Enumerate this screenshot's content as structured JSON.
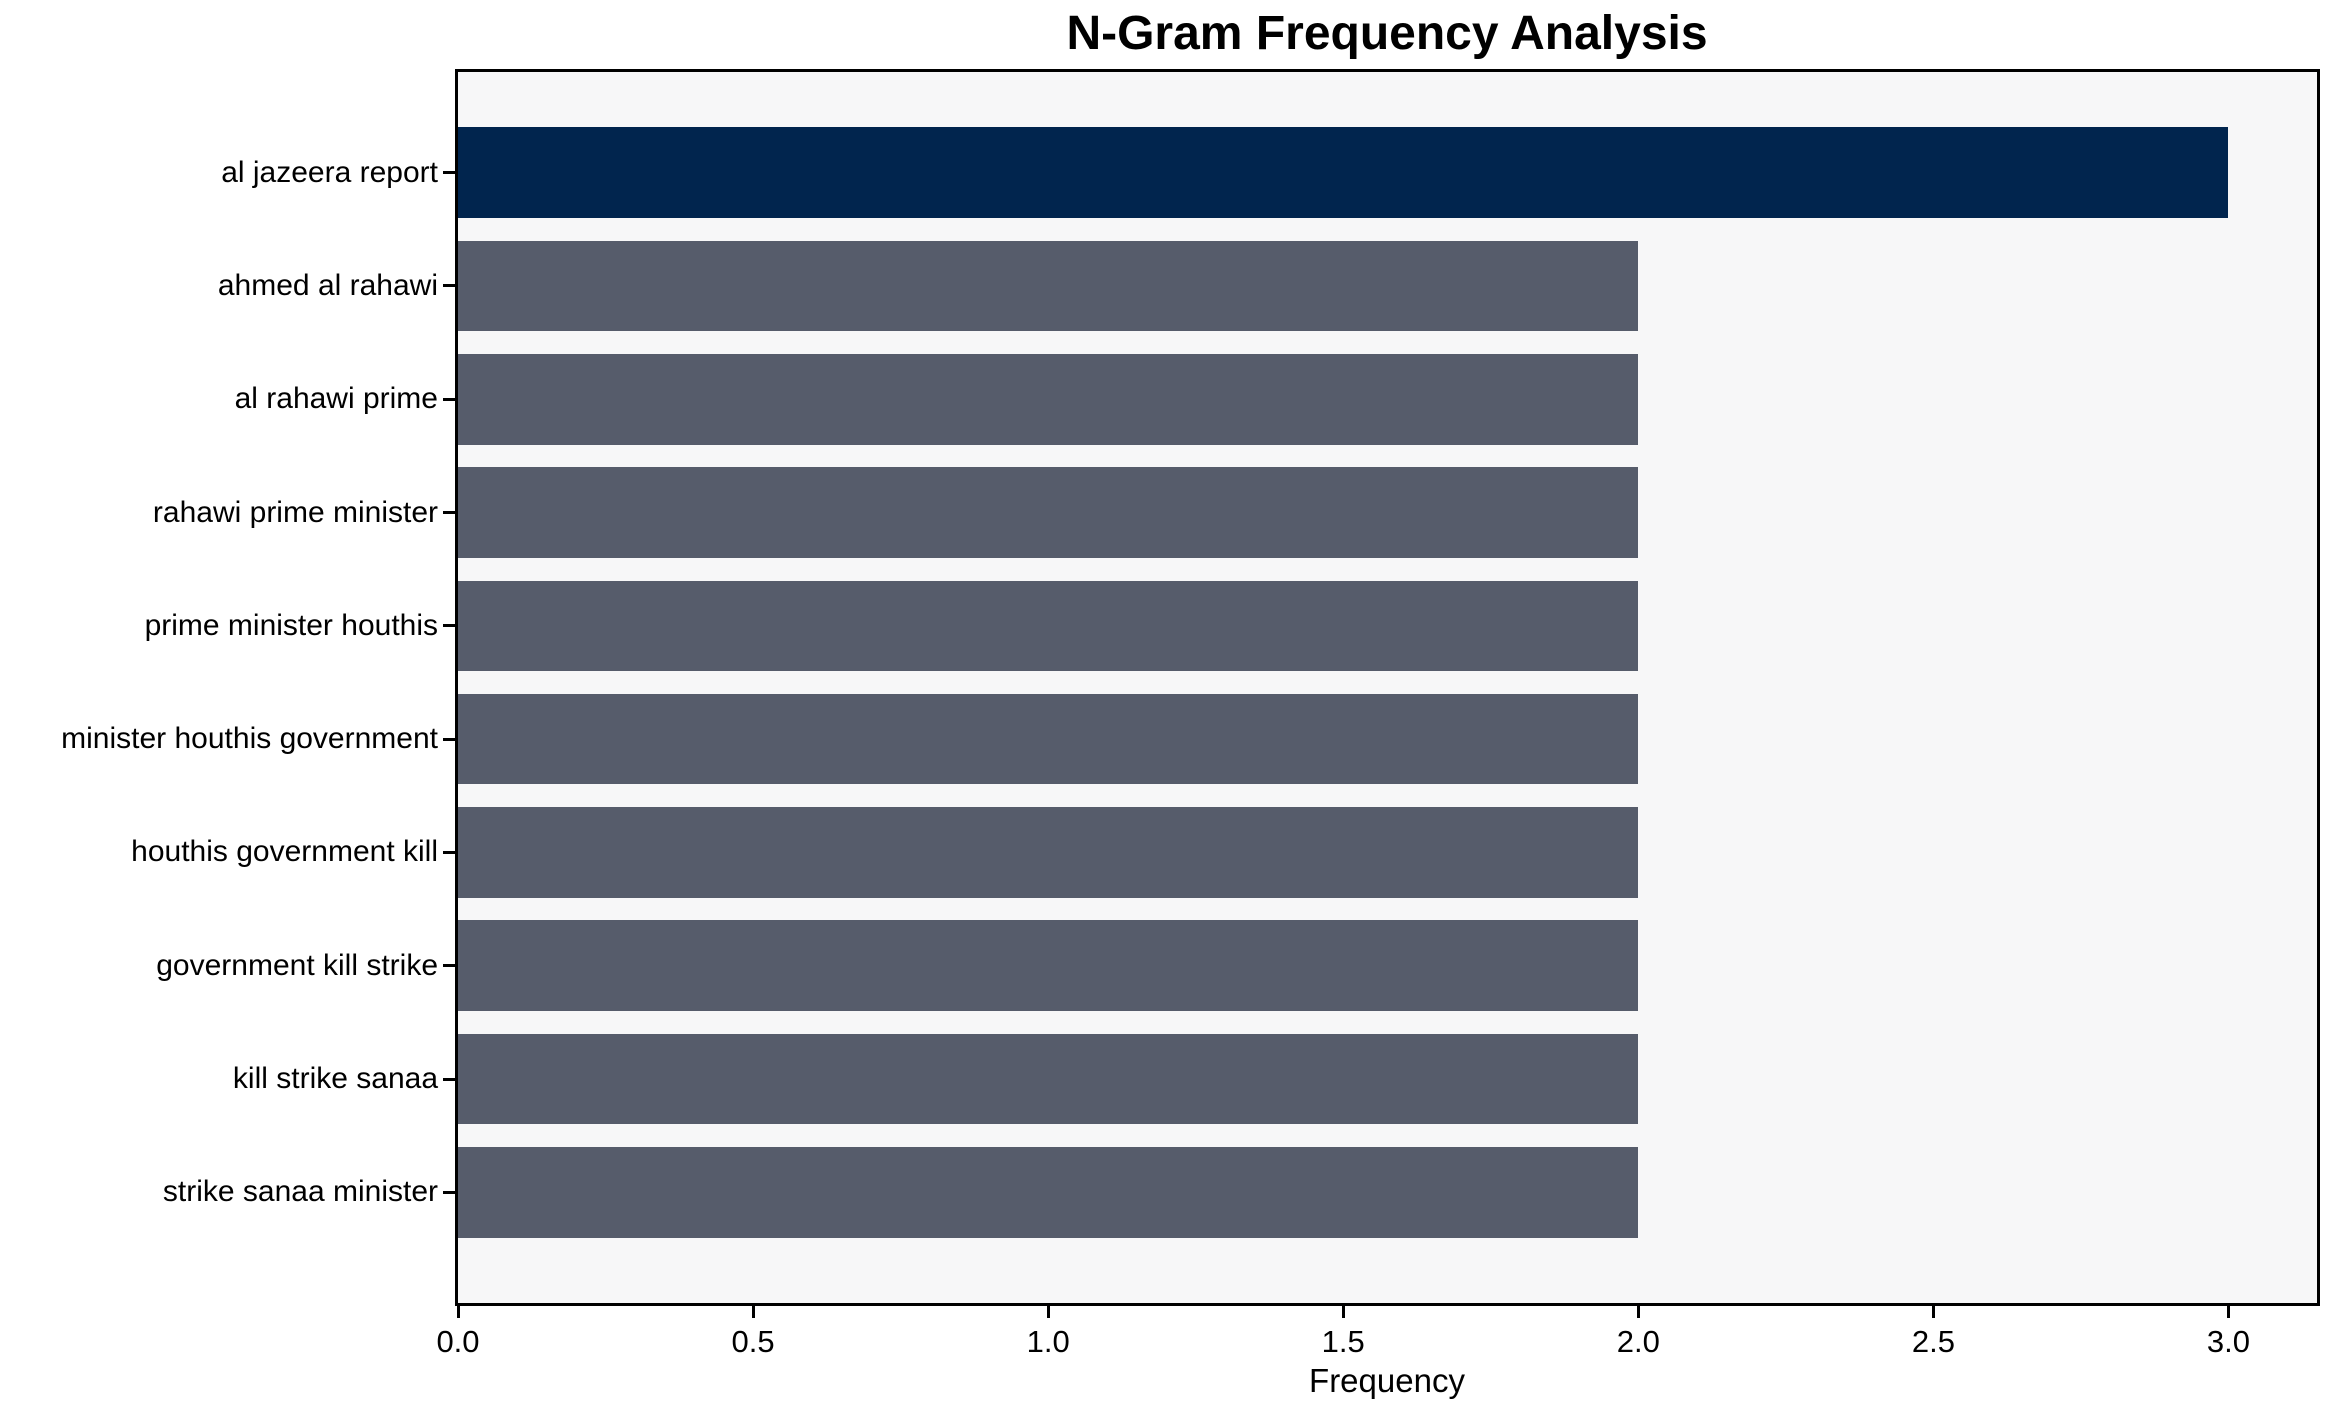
{
  "chart_data": {
    "type": "bar",
    "orientation": "horizontal",
    "title": "N-Gram Frequency Analysis",
    "xlabel": "Frequency",
    "ylabel": "",
    "categories": [
      "al jazeera report",
      "ahmed al rahawi",
      "al rahawi prime",
      "rahawi prime minister",
      "prime minister houthis",
      "minister houthis government",
      "houthis government kill",
      "government kill strike",
      "kill strike sanaa",
      "strike sanaa minister"
    ],
    "values": [
      3,
      2,
      2,
      2,
      2,
      2,
      2,
      2,
      2,
      2
    ],
    "bar_colors": [
      "#01254e",
      "#565c6b",
      "#565c6b",
      "#565c6b",
      "#565c6b",
      "#565c6b",
      "#565c6b",
      "#565c6b",
      "#565c6b",
      "#565c6b"
    ],
    "x_tick_values": [
      0.0,
      0.5,
      1.0,
      1.5,
      2.0,
      2.5,
      3.0
    ],
    "x_tick_labels": [
      "0.0",
      "0.5",
      "1.0",
      "1.5",
      "2.0",
      "2.5",
      "3.0"
    ],
    "xlim": [
      0,
      3.15
    ],
    "grid": false,
    "legend": "none",
    "colors": {
      "highlight_bar": "#01254e",
      "bar": "#565c6b",
      "plot_background": "#f7f7f8",
      "figure_background": "#ffffff",
      "spine": "#000000",
      "text": "#000000"
    }
  }
}
